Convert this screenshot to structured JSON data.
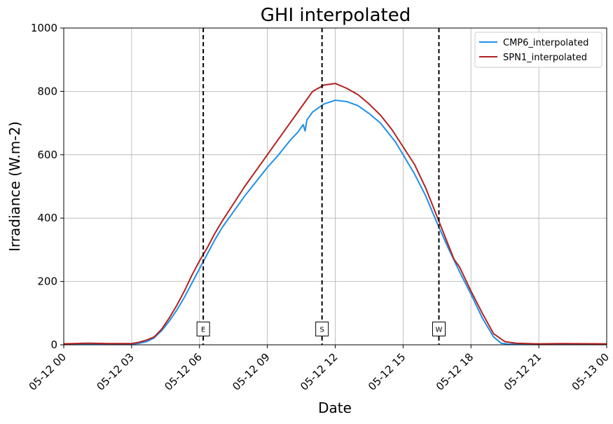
{
  "chart_data": {
    "type": "line",
    "title": "GHI interpolated",
    "xlabel": "Date",
    "ylabel": "Irradiance (W.m-2)",
    "xlim": [
      "05-12 00:00",
      "05-13 00:00"
    ],
    "ylim": [
      0,
      1000
    ],
    "x_ticks": [
      "05-12 00",
      "05-12 03",
      "05-12 06",
      "05-12 09",
      "05-12 12",
      "05-12 15",
      "05-12 18",
      "05-12 21",
      "05-13 00"
    ],
    "y_ticks": [
      "0",
      "200",
      "400",
      "600",
      "800",
      "1000"
    ],
    "grid": true,
    "legend_position": "top-right",
    "colors": {
      "cmp6": "#1e90e8",
      "spn1": "#b22222"
    },
    "series": [
      {
        "name": "CMP6_interpolated",
        "color": "#1e90e8",
        "points": [
          [
            "05-12 00:00",
            2
          ],
          [
            "05-12 01:00",
            2
          ],
          [
            "05-12 02:00",
            2
          ],
          [
            "05-12 03:00",
            2
          ],
          [
            "05-12 03:20",
            5
          ],
          [
            "05-12 03:40",
            10
          ],
          [
            "05-12 04:00",
            22
          ],
          [
            "05-12 04:20",
            45
          ],
          [
            "05-12 04:40",
            75
          ],
          [
            "05-12 05:00",
            110
          ],
          [
            "05-12 05:20",
            150
          ],
          [
            "05-12 05:40",
            195
          ],
          [
            "05-12 06:00",
            240
          ],
          [
            "05-12 06:20",
            285
          ],
          [
            "05-12 06:40",
            330
          ],
          [
            "05-12 07:00",
            370
          ],
          [
            "05-12 07:30",
            420
          ],
          [
            "05-12 08:00",
            470
          ],
          [
            "05-12 08:30",
            515
          ],
          [
            "05-12 09:00",
            560
          ],
          [
            "05-12 09:30",
            600
          ],
          [
            "05-12 10:00",
            645
          ],
          [
            "05-12 10:20",
            670
          ],
          [
            "05-12 10:35",
            695
          ],
          [
            "05-12 10:40",
            675
          ],
          [
            "05-12 10:45",
            710
          ],
          [
            "05-12 11:00",
            735
          ],
          [
            "05-12 11:30",
            760
          ],
          [
            "05-12 12:00",
            772
          ],
          [
            "05-12 12:30",
            768
          ],
          [
            "05-12 13:00",
            755
          ],
          [
            "05-12 13:30",
            730
          ],
          [
            "05-12 14:00",
            700
          ],
          [
            "05-12 14:20",
            670
          ],
          [
            "05-12 14:40",
            640
          ],
          [
            "05-12 15:00",
            600
          ],
          [
            "05-12 15:30",
            540
          ],
          [
            "05-12 16:00",
            470
          ],
          [
            "05-12 16:30",
            385
          ],
          [
            "05-12 17:00",
            305
          ],
          [
            "05-12 17:30",
            230
          ],
          [
            "05-12 18:00",
            160
          ],
          [
            "05-12 18:30",
            85
          ],
          [
            "05-12 19:00",
            25
          ],
          [
            "05-12 19:20",
            5
          ],
          [
            "05-12 19:40",
            2
          ],
          [
            "05-12 21:00",
            2
          ],
          [
            "05-13 00:00",
            2
          ]
        ]
      },
      {
        "name": "SPN1_interpolated",
        "color": "#b22222",
        "points": [
          [
            "05-12 00:00",
            3
          ],
          [
            "05-12 01:00",
            5
          ],
          [
            "05-12 02:00",
            4
          ],
          [
            "05-12 03:00",
            4
          ],
          [
            "05-12 03:20",
            8
          ],
          [
            "05-12 03:40",
            15
          ],
          [
            "05-12 04:00",
            25
          ],
          [
            "05-12 04:20",
            50
          ],
          [
            "05-12 04:40",
            85
          ],
          [
            "05-12 05:00",
            125
          ],
          [
            "05-12 05:20",
            170
          ],
          [
            "05-12 05:40",
            220
          ],
          [
            "05-12 06:00",
            265
          ],
          [
            "05-12 06:20",
            305
          ],
          [
            "05-12 06:40",
            350
          ],
          [
            "05-12 07:00",
            390
          ],
          [
            "05-12 07:30",
            445
          ],
          [
            "05-12 08:00",
            500
          ],
          [
            "05-12 08:30",
            550
          ],
          [
            "05-12 09:00",
            600
          ],
          [
            "05-12 09:30",
            650
          ],
          [
            "05-12 10:00",
            700
          ],
          [
            "05-12 10:30",
            750
          ],
          [
            "05-12 11:00",
            800
          ],
          [
            "05-12 11:30",
            820
          ],
          [
            "05-12 12:00",
            825
          ],
          [
            "05-12 12:30",
            810
          ],
          [
            "05-12 13:00",
            790
          ],
          [
            "05-12 13:30",
            760
          ],
          [
            "05-12 14:00",
            725
          ],
          [
            "05-12 14:30",
            680
          ],
          [
            "05-12 15:00",
            625
          ],
          [
            "05-12 15:30",
            570
          ],
          [
            "05-12 16:00",
            495
          ],
          [
            "05-12 16:30",
            405
          ],
          [
            "05-12 17:00",
            315
          ],
          [
            "05-12 17:15",
            270
          ],
          [
            "05-12 17:30",
            245
          ],
          [
            "05-12 18:00",
            170
          ],
          [
            "05-12 18:30",
            100
          ],
          [
            "05-12 19:00",
            35
          ],
          [
            "05-12 19:30",
            10
          ],
          [
            "05-12 20:00",
            5
          ],
          [
            "05-12 21:00",
            3
          ],
          [
            "05-12 22:00",
            4
          ],
          [
            "05-13 00:00",
            3
          ]
        ]
      }
    ],
    "annotations": [
      {
        "label": "E",
        "x": "05-12 06:10",
        "y": 50
      },
      {
        "label": "S",
        "x": "05-12 11:25",
        "y": 50
      },
      {
        "label": "W",
        "x": "05-12 16:35",
        "y": 50
      }
    ]
  }
}
